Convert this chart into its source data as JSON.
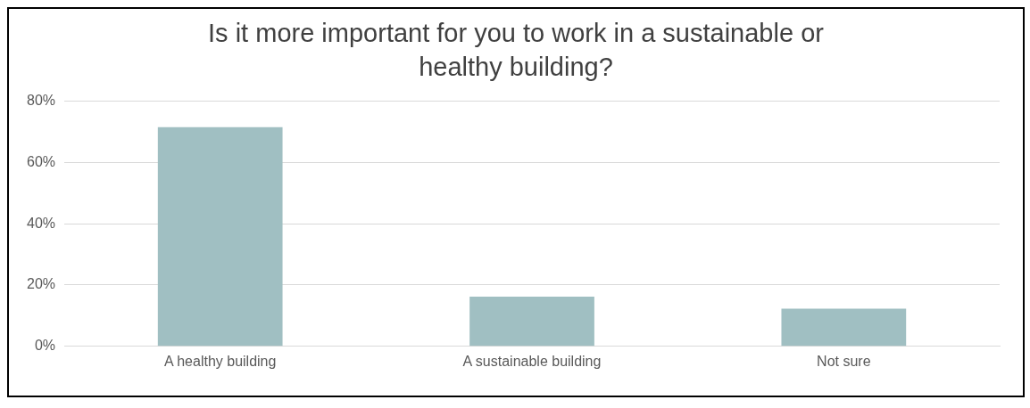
{
  "chart_data": {
    "type": "bar",
    "title": "Is it more important for you to work in a sustainable or healthy building?",
    "categories": [
      "A healthy building",
      "A sustainable building",
      "Not sure"
    ],
    "values": [
      71.5,
      16.2,
      12.3
    ],
    "color": "#a0bfc2",
    "ylim": [
      0,
      80
    ],
    "yticks": [
      {
        "value": 0,
        "label": "0%"
      },
      {
        "value": 20,
        "label": "20%"
      },
      {
        "value": 40,
        "label": "40%"
      },
      {
        "value": 60,
        "label": "60%"
      },
      {
        "value": 80,
        "label": "80%"
      }
    ],
    "grid": "y",
    "legend": false
  }
}
